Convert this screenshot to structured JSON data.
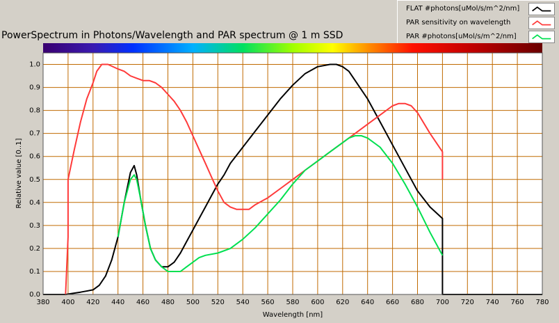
{
  "chart_data": {
    "type": "line",
    "title": "PowerSpectrum in Photons/Wavelength and PAR spectrum @ 1 m SSD",
    "xlabel": "Wavelength [nm]",
    "ylabel": "Relative value [0..1]",
    "xlim": [
      380,
      780
    ],
    "ylim": [
      0,
      1.05
    ],
    "xticks": [
      380,
      400,
      420,
      440,
      460,
      480,
      500,
      520,
      540,
      560,
      580,
      600,
      620,
      640,
      660,
      680,
      700,
      720,
      740,
      760,
      780
    ],
    "yticks": [
      0.0,
      0.1,
      0.2,
      0.3,
      0.4,
      0.5,
      0.6,
      0.7,
      0.8,
      0.9,
      1.0
    ],
    "grid": true,
    "legend_position": "top-right",
    "colors": {
      "plot_bg": "#000000",
      "grid": "#c06a00"
    },
    "series": [
      {
        "name": "FLAT #photons[uMol/s/m^2/nm]",
        "color": "#000000",
        "x": [
          380,
          398,
          410,
          420,
          425,
          430,
          435,
          440,
          445,
          450,
          453,
          455,
          458,
          462,
          466,
          470,
          475,
          480,
          485,
          490,
          495,
          500,
          505,
          510,
          515,
          520,
          525,
          530,
          540,
          550,
          560,
          570,
          580,
          590,
          600,
          610,
          615,
          620,
          625,
          630,
          640,
          650,
          660,
          670,
          680,
          690,
          700,
          700,
          720,
          740,
          760,
          780
        ],
        "y": [
          0.0,
          0.0,
          0.01,
          0.02,
          0.04,
          0.08,
          0.15,
          0.25,
          0.4,
          0.53,
          0.56,
          0.52,
          0.42,
          0.3,
          0.2,
          0.15,
          0.12,
          0.12,
          0.14,
          0.18,
          0.23,
          0.28,
          0.33,
          0.38,
          0.43,
          0.48,
          0.52,
          0.57,
          0.64,
          0.71,
          0.78,
          0.85,
          0.91,
          0.96,
          0.99,
          1.0,
          1.0,
          0.99,
          0.97,
          0.93,
          0.85,
          0.75,
          0.65,
          0.55,
          0.45,
          0.38,
          0.33,
          0.0,
          0.0,
          0.0,
          0.0,
          0.0
        ]
      },
      {
        "name": "PAR sensitivity on wavelength",
        "color": "#ff3a3a",
        "x": [
          398,
          400,
          400,
          405,
          410,
          415,
          420,
          423,
          427,
          432,
          440,
          445,
          450,
          455,
          460,
          465,
          470,
          475,
          480,
          485,
          490,
          495,
          500,
          505,
          510,
          515,
          520,
          525,
          530,
          535,
          540,
          545,
          550,
          560,
          570,
          580,
          590,
          600,
          610,
          620,
          630,
          640,
          650,
          660,
          665,
          670,
          675,
          680,
          690,
          700,
          700
        ],
        "y": [
          0.0,
          0.25,
          0.5,
          0.63,
          0.75,
          0.85,
          0.92,
          0.97,
          1.0,
          1.0,
          0.98,
          0.97,
          0.95,
          0.94,
          0.93,
          0.93,
          0.92,
          0.9,
          0.87,
          0.84,
          0.8,
          0.75,
          0.69,
          0.63,
          0.57,
          0.51,
          0.45,
          0.4,
          0.38,
          0.37,
          0.37,
          0.37,
          0.39,
          0.42,
          0.46,
          0.5,
          0.54,
          0.58,
          0.62,
          0.66,
          0.7,
          0.74,
          0.78,
          0.82,
          0.83,
          0.83,
          0.82,
          0.79,
          0.7,
          0.62,
          0.5
        ]
      },
      {
        "name": "PAR #photons[uMol/s/m^2/nm]",
        "color": "#00e050",
        "x": [
          440,
          445,
          450,
          453,
          455,
          458,
          462,
          466,
          470,
          475,
          480,
          485,
          490,
          495,
          500,
          505,
          510,
          520,
          530,
          540,
          550,
          560,
          570,
          580,
          590,
          600,
          610,
          620,
          625,
          630,
          635,
          640,
          650,
          660,
          670,
          680,
          690,
          700
        ],
        "y": [
          0.25,
          0.4,
          0.5,
          0.52,
          0.5,
          0.42,
          0.3,
          0.2,
          0.15,
          0.12,
          0.1,
          0.1,
          0.1,
          0.12,
          0.14,
          0.16,
          0.17,
          0.18,
          0.2,
          0.24,
          0.29,
          0.35,
          0.41,
          0.48,
          0.54,
          0.58,
          0.62,
          0.66,
          0.68,
          0.69,
          0.69,
          0.68,
          0.64,
          0.57,
          0.48,
          0.38,
          0.27,
          0.17
        ]
      }
    ]
  }
}
